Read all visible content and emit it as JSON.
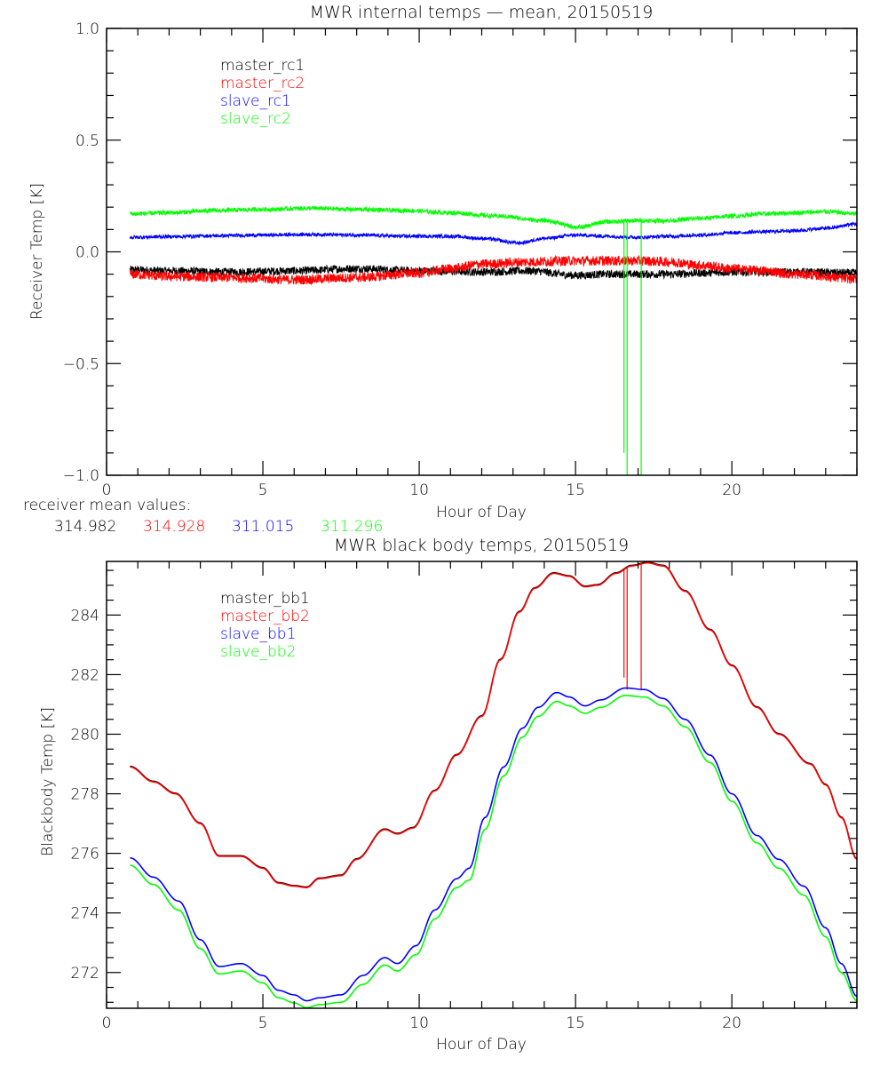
{
  "chart_data": [
    {
      "type": "line",
      "title": "MWR internal temps — mean, 20150519",
      "xlabel": "Hour of Day",
      "ylabel": "Receiver Temp [K]",
      "xlim": [
        0,
        24
      ],
      "ylim": [
        -1.0,
        1.0
      ],
      "xticks": [
        0,
        5,
        10,
        15,
        20
      ],
      "xtick_labels": [
        "0",
        "5",
        "10",
        "15",
        "20"
      ],
      "yticks": [
        -1.0,
        -0.5,
        0.0,
        0.5,
        1.0
      ],
      "ytick_labels": [
        "−1.0",
        "−0.5",
        "0.0",
        "0.5",
        "1.0"
      ],
      "grid": false,
      "legend_position": "top-left",
      "series": [
        {
          "name": "master_rc1",
          "color": "#000000",
          "noise": 0.018,
          "x": [
            0.75,
            2,
            4,
            6,
            8,
            10,
            12,
            13.5,
            15,
            16,
            17,
            18,
            19,
            20,
            22,
            24
          ],
          "y": [
            -0.08,
            -0.085,
            -0.09,
            -0.085,
            -0.075,
            -0.085,
            -0.09,
            -0.085,
            -0.105,
            -0.1,
            -0.1,
            -0.1,
            -0.095,
            -0.09,
            -0.09,
            -0.095
          ]
        },
        {
          "name": "master_rc2",
          "color": "#ff0000",
          "noise": 0.022,
          "x": [
            0.75,
            2,
            4,
            6,
            8,
            10,
            11,
            12,
            13.5,
            15,
            16,
            17,
            18,
            19,
            20,
            21,
            22,
            24
          ],
          "y": [
            -0.1,
            -0.11,
            -0.115,
            -0.125,
            -0.115,
            -0.095,
            -0.075,
            -0.055,
            -0.045,
            -0.04,
            -0.04,
            -0.04,
            -0.045,
            -0.06,
            -0.075,
            -0.085,
            -0.1,
            -0.12
          ]
        },
        {
          "name": "slave_rc1",
          "color": "#0000ff",
          "noise": 0.008,
          "x": [
            0.75,
            2,
            3.5,
            5,
            6.5,
            8,
            9.5,
            11,
            12,
            13.2,
            14,
            15,
            16,
            17,
            18,
            19,
            20,
            21,
            22,
            23,
            24
          ],
          "y": [
            0.065,
            0.068,
            0.072,
            0.075,
            0.078,
            0.075,
            0.07,
            0.07,
            0.06,
            0.04,
            0.06,
            0.075,
            0.07,
            0.065,
            0.07,
            0.075,
            0.085,
            0.09,
            0.095,
            0.105,
            0.125
          ]
        },
        {
          "name": "slave_rc2",
          "color": "#00ff00",
          "noise": 0.01,
          "x": [
            0.75,
            2,
            3.5,
            5,
            6.5,
            8,
            9.5,
            11,
            12.5,
            14,
            15.1,
            16,
            17,
            18,
            19,
            20,
            21,
            22,
            23,
            24
          ],
          "y": [
            0.17,
            0.175,
            0.185,
            0.19,
            0.195,
            0.19,
            0.185,
            0.175,
            0.16,
            0.14,
            0.11,
            0.135,
            0.14,
            0.14,
            0.15,
            0.16,
            0.17,
            0.175,
            0.18,
            0.17
          ],
          "spikes": [
            {
              "x": 16.55,
              "y": -0.9
            },
            {
              "x": 16.65,
              "y": -1.0
            },
            {
              "x": 17.1,
              "y": -1.0
            }
          ]
        }
      ],
      "annotation": {
        "label": "receiver mean values:",
        "values": [
          {
            "text": "314.982",
            "color": "#000000"
          },
          {
            "text": "314.928",
            "color": "#ff0000"
          },
          {
            "text": "311.015",
            "color": "#0000ff"
          },
          {
            "text": "311.296",
            "color": "#00ff00"
          }
        ]
      }
    },
    {
      "type": "line",
      "title": "MWR black body temps, 20150519",
      "xlabel": "Hour of Day",
      "ylabel": "Blackbody Temp [K]",
      "xlim": [
        0,
        24
      ],
      "ylim": [
        270.8,
        285.8
      ],
      "xticks": [
        0,
        5,
        10,
        15,
        20
      ],
      "xtick_labels": [
        "0",
        "5",
        "10",
        "15",
        "20"
      ],
      "yticks": [
        272,
        274,
        276,
        278,
        280,
        282,
        284
      ],
      "ytick_labels": [
        "272",
        "274",
        "276",
        "278",
        "280",
        "282",
        "284"
      ],
      "grid": false,
      "legend_position": "top-left",
      "series": [
        {
          "name": "master_bb1",
          "color": "#000000",
          "x": [
            0.75,
            1.5,
            2.2,
            3,
            3.6,
            4.3,
            5,
            5.5,
            6,
            6.4,
            6.8,
            7.5,
            8,
            8.9,
            9.3,
            9.8,
            10.5,
            11.2,
            12,
            12.6,
            13.2,
            13.7,
            14.3,
            14.8,
            15.3,
            15.7,
            16.3,
            16.8,
            17.3,
            17.8,
            18.5,
            19.3,
            20,
            20.8,
            21.5,
            22.5,
            23,
            23.5,
            24
          ],
          "y": [
            278.92,
            278.42,
            278.02,
            277.02,
            275.92,
            275.92,
            275.52,
            275.02,
            274.92,
            274.87,
            275.17,
            275.27,
            275.82,
            276.82,
            276.67,
            276.87,
            278.12,
            279.32,
            280.62,
            282.52,
            284.12,
            284.92,
            285.42,
            285.32,
            284.97,
            285.02,
            285.42,
            285.67,
            285.77,
            285.67,
            284.82,
            283.52,
            282.32,
            280.92,
            280.02,
            279.02,
            278.32,
            277.22,
            275.82
          ]
        },
        {
          "name": "master_bb2",
          "color": "#ff0000",
          "x": [
            0.75,
            1.5,
            2.2,
            3,
            3.6,
            4.3,
            5,
            5.5,
            6,
            6.4,
            6.8,
            7.5,
            8,
            8.9,
            9.3,
            9.8,
            10.5,
            11.2,
            12,
            12.6,
            13.2,
            13.7,
            14.3,
            14.8,
            15.3,
            15.7,
            16.3,
            16.8,
            17.3,
            17.8,
            18.5,
            19.3,
            20,
            20.8,
            21.5,
            22.5,
            23,
            23.5,
            24
          ],
          "y": [
            278.9,
            278.4,
            278.0,
            277.0,
            275.9,
            275.9,
            275.5,
            275.0,
            274.9,
            274.85,
            275.15,
            275.25,
            275.8,
            276.8,
            276.65,
            276.85,
            278.1,
            279.3,
            280.6,
            282.5,
            284.1,
            284.9,
            285.4,
            285.3,
            284.95,
            285.0,
            285.4,
            285.65,
            285.75,
            285.65,
            284.8,
            283.5,
            282.3,
            280.9,
            280.0,
            279.0,
            278.3,
            277.2,
            275.8
          ],
          "spikes": [
            {
              "x": 16.55,
              "y": 281.9
            },
            {
              "x": 16.65,
              "y": 281.5
            },
            {
              "x": 17.1,
              "y": 281.5
            }
          ]
        },
        {
          "name": "slave_bb1",
          "color": "#0000ff",
          "x": [
            0.75,
            1.5,
            2.3,
            3,
            3.6,
            4.3,
            5,
            5.5,
            6,
            6.4,
            6.8,
            7.5,
            8.2,
            8.9,
            9.3,
            9.9,
            10.5,
            11.2,
            11.6,
            12.1,
            12.7,
            13.3,
            13.8,
            14.4,
            14.8,
            15.3,
            15.8,
            16.6,
            17.2,
            17.8,
            18.5,
            19.3,
            20,
            20.8,
            21.5,
            22.3,
            23,
            23.5,
            24
          ],
          "y": [
            275.85,
            275.2,
            274.4,
            273.1,
            272.2,
            272.3,
            271.9,
            271.4,
            271.25,
            271.05,
            271.15,
            271.25,
            271.9,
            272.5,
            272.3,
            272.9,
            274.1,
            275.15,
            275.5,
            277.2,
            278.9,
            280.2,
            280.9,
            281.4,
            281.25,
            280.95,
            281.15,
            281.55,
            281.5,
            281.2,
            280.5,
            279.3,
            278.0,
            276.6,
            275.8,
            274.9,
            273.5,
            272.3,
            271.2
          ]
        },
        {
          "name": "slave_bb2",
          "color": "#00ff00",
          "x": [
            0.75,
            1.5,
            2.3,
            3,
            3.6,
            4.3,
            5,
            5.5,
            6,
            6.4,
            6.8,
            7.5,
            8.2,
            8.9,
            9.3,
            9.9,
            10.5,
            11.2,
            11.6,
            12.1,
            12.7,
            13.3,
            13.8,
            14.4,
            14.8,
            15.3,
            15.8,
            16.6,
            17.2,
            17.8,
            18.5,
            19.3,
            20,
            20.8,
            21.5,
            22.3,
            23,
            23.5,
            24
          ],
          "y": [
            275.6,
            274.95,
            274.1,
            272.8,
            271.95,
            272.05,
            271.65,
            271.15,
            270.98,
            270.82,
            270.92,
            271.0,
            271.6,
            272.25,
            272.05,
            272.6,
            273.8,
            274.85,
            275.1,
            276.8,
            278.6,
            279.9,
            280.6,
            281.1,
            280.95,
            280.7,
            280.9,
            281.3,
            281.25,
            280.95,
            280.25,
            279.05,
            277.75,
            276.35,
            275.5,
            274.6,
            273.2,
            272.0,
            271.05
          ]
        }
      ]
    }
  ]
}
